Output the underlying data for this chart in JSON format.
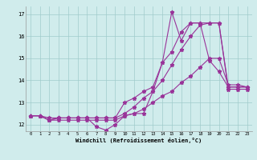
{
  "title": "",
  "xlabel": "Windchill (Refroidissement éolien,°C)",
  "ylabel": "",
  "background_color": "#d0ecec",
  "grid_color": "#a0cccc",
  "line_color": "#993399",
  "xlim": [
    -0.5,
    23.5
  ],
  "ylim": [
    11.7,
    17.35
  ],
  "xticks": [
    0,
    1,
    2,
    3,
    4,
    5,
    6,
    7,
    8,
    9,
    10,
    11,
    12,
    13,
    14,
    15,
    16,
    17,
    18,
    19,
    20,
    21,
    22,
    23
  ],
  "yticks": [
    12,
    13,
    14,
    15,
    16,
    17
  ],
  "series": [
    {
      "x": [
        0,
        1,
        2,
        3,
        4,
        5,
        6,
        7,
        8,
        9,
        10,
        11,
        12,
        13,
        14,
        15,
        16,
        17,
        18,
        19,
        20,
        21,
        22,
        23
      ],
      "y": [
        12.4,
        12.4,
        12.2,
        12.3,
        12.3,
        12.3,
        12.3,
        11.9,
        11.75,
        12.0,
        12.4,
        12.5,
        12.5,
        13.5,
        14.8,
        17.1,
        15.8,
        16.6,
        16.6,
        14.9,
        14.4,
        13.7,
        13.7,
        13.7
      ]
    },
    {
      "x": [
        0,
        1,
        2,
        3,
        4,
        5,
        6,
        7,
        8,
        9,
        10,
        11,
        12,
        13,
        14,
        15,
        16,
        17,
        18,
        19,
        20,
        21,
        22,
        23
      ],
      "y": [
        12.4,
        12.4,
        12.2,
        12.3,
        12.3,
        12.3,
        12.3,
        12.3,
        12.3,
        12.3,
        13.0,
        13.2,
        13.5,
        13.7,
        14.8,
        15.3,
        16.2,
        16.6,
        16.6,
        16.6,
        16.6,
        13.6,
        13.6,
        13.6
      ]
    },
    {
      "x": [
        0,
        1,
        2,
        3,
        4,
        5,
        6,
        7,
        8,
        9,
        10,
        11,
        12,
        13,
        14,
        15,
        16,
        17,
        18,
        19,
        20,
        21,
        22,
        23
      ],
      "y": [
        12.4,
        12.4,
        12.3,
        12.3,
        12.3,
        12.3,
        12.3,
        12.3,
        12.3,
        12.3,
        12.5,
        12.8,
        13.2,
        13.5,
        14.0,
        14.7,
        15.4,
        16.0,
        16.5,
        16.6,
        16.6,
        13.7,
        13.7,
        13.7
      ]
    },
    {
      "x": [
        0,
        1,
        2,
        3,
        4,
        5,
        6,
        7,
        8,
        9,
        10,
        11,
        12,
        13,
        14,
        15,
        16,
        17,
        18,
        19,
        20,
        21,
        22,
        23
      ],
      "y": [
        12.4,
        12.4,
        12.2,
        12.2,
        12.2,
        12.2,
        12.2,
        12.2,
        12.2,
        12.2,
        12.4,
        12.5,
        12.7,
        13.0,
        13.3,
        13.5,
        13.9,
        14.2,
        14.6,
        15.0,
        15.0,
        13.8,
        13.8,
        13.7
      ]
    }
  ]
}
